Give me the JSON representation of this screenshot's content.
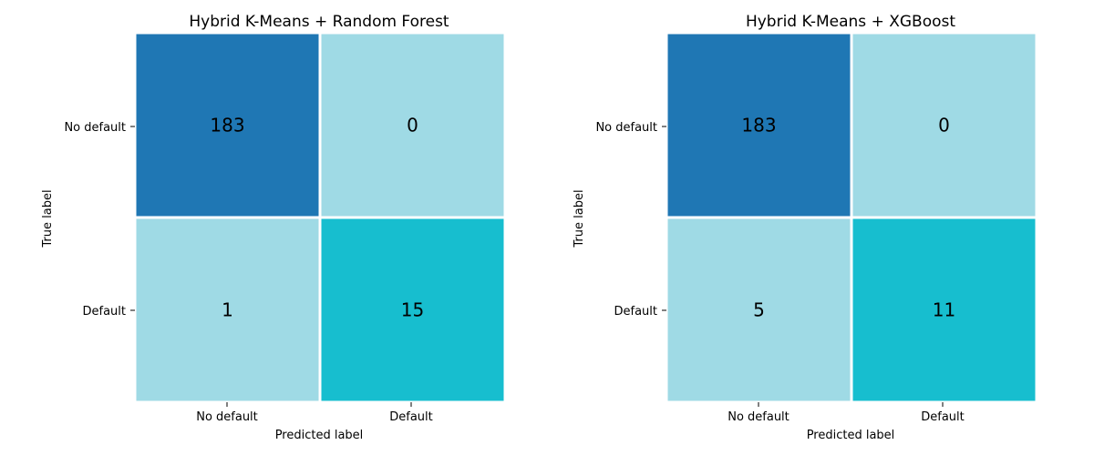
{
  "colors": {
    "high": "#1f77b4",
    "low": "#9fdae5",
    "mid": "#17becf",
    "grid": "#ffffff"
  },
  "chart_data": [
    {
      "type": "heatmap",
      "title": "Hybrid K-Means + Random Forest",
      "xlabel": "Predicted label",
      "ylabel": "True label",
      "x_categories": [
        "No default",
        "Default"
      ],
      "y_categories": [
        "No default",
        "Default"
      ],
      "values": [
        [
          183,
          0
        ],
        [
          1,
          15
        ]
      ]
    },
    {
      "type": "heatmap",
      "title": "Hybrid K-Means + XGBoost",
      "xlabel": "Predicted label",
      "ylabel": "True label",
      "x_categories": [
        "No default",
        "Default"
      ],
      "y_categories": [
        "No default",
        "Default"
      ],
      "values": [
        [
          183,
          0
        ],
        [
          5,
          11
        ]
      ]
    }
  ]
}
